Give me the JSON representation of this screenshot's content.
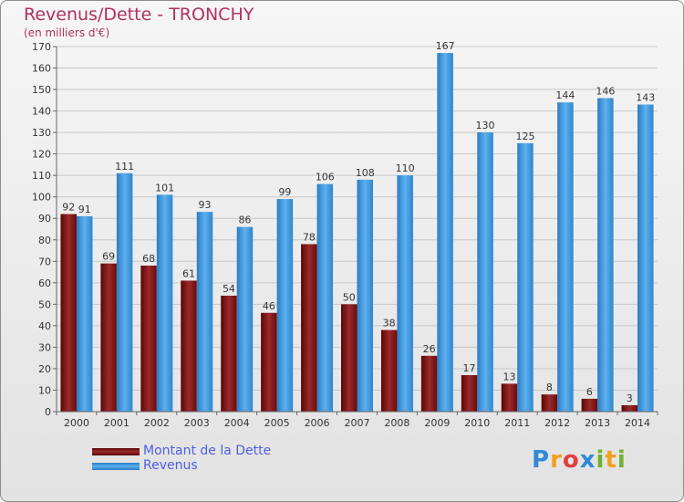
{
  "header": {
    "title": "Revenus/Dette - TRONCHY",
    "subtitle": "(en milliers d'€)"
  },
  "colors": {
    "dette": "#8b1a1a",
    "revenus": "#3b95dc",
    "title": "#b03060"
  },
  "legend": {
    "items": [
      {
        "label": "Montant de la Dette",
        "color": "#7a1010"
      },
      {
        "label": "Revenus",
        "color": "#3b95dc"
      }
    ]
  },
  "logo": {
    "text": "Proxiti"
  },
  "chart_data": {
    "type": "bar",
    "title": "Revenus/Dette - TRONCHY",
    "ylabel": "(en milliers d'€)",
    "xlabel": "",
    "ylim": [
      0,
      170
    ],
    "ytick_step": 10,
    "grid": true,
    "legend_position": "bottom-left",
    "categories": [
      "2000",
      "2001",
      "2002",
      "2003",
      "2004",
      "2005",
      "2006",
      "2007",
      "2008",
      "2009",
      "2010",
      "2011",
      "2012",
      "2013",
      "2014"
    ],
    "series": [
      {
        "name": "Montant de la Dette",
        "values": [
          92,
          69,
          68,
          61,
          54,
          46,
          78,
          50,
          38,
          26,
          17,
          13,
          8,
          6,
          3
        ]
      },
      {
        "name": "Revenus",
        "values": [
          91,
          111,
          101,
          93,
          86,
          99,
          106,
          108,
          110,
          167,
          130,
          125,
          144,
          146,
          143
        ]
      }
    ]
  }
}
